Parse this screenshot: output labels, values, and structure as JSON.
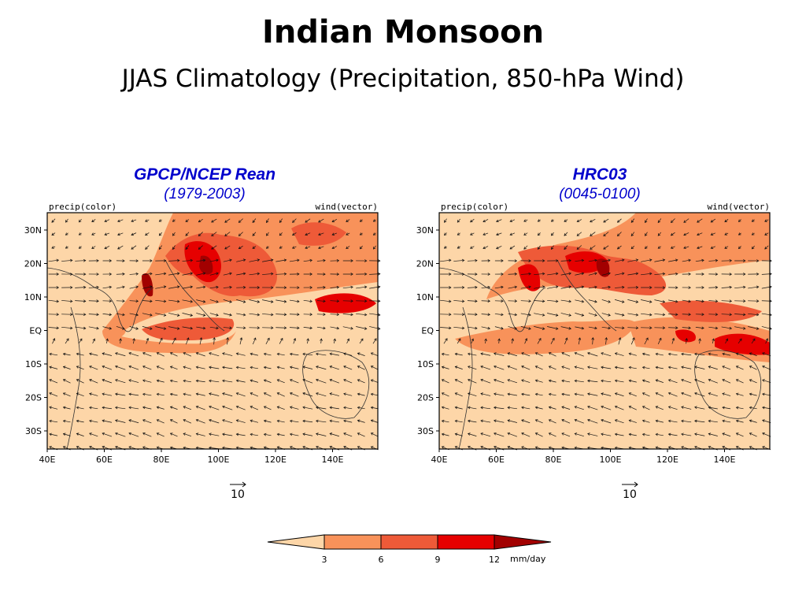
{
  "title": "Indian Monsoon",
  "subtitle": "JJAS Climatology (Precipitation, 850-hPa Wind)",
  "panels": [
    {
      "name": "GPCP/NCEP Rean",
      "period": "(1979-2003)",
      "left_label": "precip(color)",
      "right_label": "wind(vector)",
      "ref_vector": "10"
    },
    {
      "name": "HRC03",
      "period": "(0045-0100)",
      "left_label": "precip(color)",
      "right_label": "wind(vector)",
      "ref_vector": "10"
    }
  ],
  "axes": {
    "lat_labels": [
      "30N",
      "20N",
      "10N",
      "EQ",
      "10S",
      "20S",
      "30S"
    ],
    "lon_labels": [
      "40E",
      "60E",
      "80E",
      "100E",
      "120E",
      "140E"
    ]
  },
  "colorbar": {
    "levels": [
      "3",
      "6",
      "9",
      "12"
    ],
    "units": "mm/day",
    "colors": [
      "#fdd6a8",
      "#f8925a",
      "#ee5a38",
      "#e60000",
      "#a20000"
    ]
  }
}
